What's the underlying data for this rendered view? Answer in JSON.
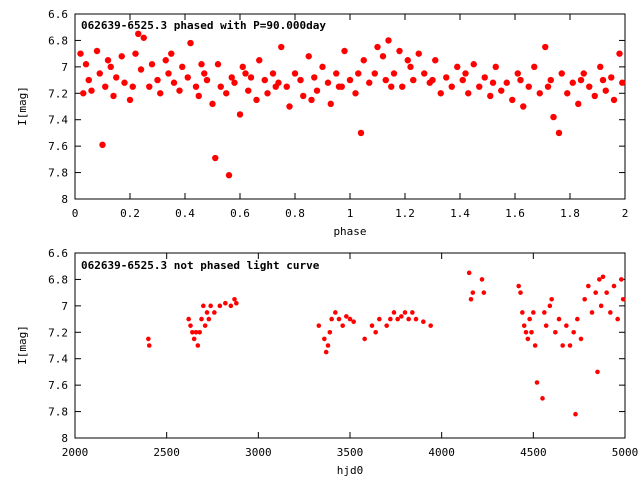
{
  "chart_data": [
    {
      "type": "scatter",
      "title": "062639-6525.3 phased with P=90.000day",
      "xlabel": "phase",
      "ylabel": "I[mag]",
      "xlim": [
        0,
        2
      ],
      "ylim": [
        6.6,
        8
      ],
      "y_inverted": true,
      "grid": false,
      "marker_color": "#ff0000",
      "xticks": [
        "0",
        "0.2",
        "0.4",
        "0.6",
        "0.8",
        "1",
        "1.2",
        "1.4",
        "1.6",
        "1.8",
        "2"
      ],
      "yticks": [
        "6.6",
        "6.8",
        "7",
        "7.2",
        "7.4",
        "7.6",
        "7.8",
        "8"
      ],
      "period_days": 90.0,
      "series": [
        {
          "points": [
            [
              0.02,
              6.9
            ],
            [
              0.04,
              6.98
            ],
            [
              0.05,
              7.1
            ],
            [
              0.06,
              7.18
            ],
            [
              0.08,
              6.88
            ],
            [
              0.09,
              7.05
            ],
            [
              0.1,
              7.59
            ],
            [
              0.11,
              7.15
            ],
            [
              0.12,
              6.95
            ],
            [
              0.14,
              7.22
            ],
            [
              0.15,
              7.08
            ],
            [
              0.17,
              6.92
            ],
            [
              0.18,
              7.12
            ],
            [
              0.2,
              7.25
            ],
            [
              0.22,
              6.9
            ],
            [
              0.23,
              6.75
            ],
            [
              0.24,
              7.02
            ],
            [
              0.25,
              6.78
            ],
            [
              0.27,
              7.15
            ],
            [
              0.28,
              6.98
            ],
            [
              0.3,
              7.1
            ],
            [
              0.31,
              7.2
            ],
            [
              0.33,
              6.95
            ],
            [
              0.34,
              7.05
            ],
            [
              0.36,
              7.12
            ],
            [
              0.38,
              7.18
            ],
            [
              0.39,
              7.0
            ],
            [
              0.41,
              7.08
            ],
            [
              0.42,
              6.82
            ],
            [
              0.44,
              7.15
            ],
            [
              0.45,
              7.22
            ],
            [
              0.47,
              7.05
            ],
            [
              0.48,
              7.1
            ],
            [
              0.5,
              7.28
            ],
            [
              0.51,
              7.69
            ],
            [
              0.52,
              6.98
            ],
            [
              0.53,
              7.15
            ],
            [
              0.55,
              7.2
            ],
            [
              0.56,
              7.82
            ],
            [
              0.57,
              7.08
            ],
            [
              0.58,
              7.12
            ],
            [
              0.6,
              7.36
            ],
            [
              0.61,
              7.0
            ],
            [
              0.63,
              7.18
            ],
            [
              0.64,
              7.08
            ],
            [
              0.66,
              7.25
            ],
            [
              0.67,
              6.95
            ],
            [
              0.69,
              7.1
            ],
            [
              0.7,
              7.2
            ],
            [
              0.72,
              7.05
            ],
            [
              0.74,
              7.12
            ],
            [
              0.75,
              6.85
            ],
            [
              0.77,
              7.15
            ],
            [
              0.78,
              7.3
            ],
            [
              0.8,
              7.05
            ],
            [
              0.82,
              7.1
            ],
            [
              0.83,
              7.22
            ],
            [
              0.85,
              6.92
            ],
            [
              0.87,
              7.08
            ],
            [
              0.88,
              7.18
            ],
            [
              0.9,
              7.0
            ],
            [
              0.92,
              7.12
            ],
            [
              0.93,
              7.28
            ],
            [
              0.95,
              7.05
            ],
            [
              0.96,
              7.15
            ],
            [
              0.98,
              6.88
            ],
            [
              1.0,
              7.1
            ],
            [
              1.02,
              7.2
            ],
            [
              1.04,
              7.5
            ],
            [
              1.05,
              6.95
            ],
            [
              1.07,
              7.12
            ],
            [
              1.09,
              7.05
            ],
            [
              1.1,
              6.85
            ],
            [
              1.12,
              6.92
            ],
            [
              1.13,
              7.1
            ],
            [
              1.14,
              6.8
            ],
            [
              1.16,
              7.05
            ],
            [
              1.18,
              6.88
            ],
            [
              1.19,
              7.15
            ],
            [
              1.21,
              6.95
            ],
            [
              1.23,
              7.1
            ],
            [
              1.25,
              6.9
            ],
            [
              1.27,
              7.05
            ],
            [
              1.29,
              7.12
            ],
            [
              1.31,
              6.95
            ],
            [
              1.33,
              7.2
            ],
            [
              1.35,
              7.08
            ],
            [
              1.37,
              7.15
            ],
            [
              1.39,
              7.0
            ],
            [
              1.41,
              7.1
            ],
            [
              1.43,
              7.2
            ],
            [
              1.45,
              6.98
            ],
            [
              1.47,
              7.15
            ],
            [
              1.49,
              7.08
            ],
            [
              1.51,
              7.22
            ],
            [
              1.53,
              7.0
            ],
            [
              1.55,
              7.18
            ],
            [
              1.57,
              7.12
            ],
            [
              1.59,
              7.25
            ],
            [
              1.61,
              7.05
            ],
            [
              1.63,
              7.3
            ],
            [
              1.65,
              7.15
            ],
            [
              1.67,
              7.0
            ],
            [
              1.69,
              7.2
            ],
            [
              1.71,
              6.85
            ],
            [
              1.73,
              7.1
            ],
            [
              1.74,
              7.38
            ],
            [
              1.76,
              7.5
            ],
            [
              1.77,
              7.05
            ],
            [
              1.79,
              7.2
            ],
            [
              1.81,
              7.12
            ],
            [
              1.83,
              7.28
            ],
            [
              1.85,
              7.05
            ],
            [
              1.87,
              7.15
            ],
            [
              1.89,
              7.22
            ],
            [
              1.91,
              7.0
            ],
            [
              1.93,
              7.18
            ],
            [
              1.95,
              7.08
            ],
            [
              1.96,
              7.25
            ],
            [
              1.98,
              6.9
            ],
            [
              1.99,
              7.12
            ],
            [
              0.03,
              7.2
            ],
            [
              0.13,
              7.0
            ],
            [
              0.21,
              7.15
            ],
            [
              0.35,
              6.9
            ],
            [
              0.46,
              6.98
            ],
            [
              0.62,
              7.05
            ],
            [
              0.73,
              7.15
            ],
            [
              0.86,
              7.25
            ],
            [
              0.97,
              7.15
            ],
            [
              1.03,
              7.05
            ],
            [
              1.15,
              7.15
            ],
            [
              1.22,
              7.0
            ],
            [
              1.3,
              7.1
            ],
            [
              1.42,
              7.05
            ],
            [
              1.52,
              7.12
            ],
            [
              1.62,
              7.1
            ],
            [
              1.72,
              7.15
            ],
            [
              1.84,
              7.1
            ],
            [
              1.92,
              7.1
            ]
          ]
        }
      ]
    },
    {
      "type": "scatter",
      "title": "062639-6525.3 not phased light curve",
      "xlabel": "hjd0",
      "ylabel": "I[mag]",
      "xlim": [
        2000,
        5000
      ],
      "ylim": [
        6.6,
        8
      ],
      "y_inverted": true,
      "grid": false,
      "marker_color": "#ff0000",
      "xticks": [
        "2000",
        "2500",
        "3000",
        "3500",
        "4000",
        "4500",
        "5000"
      ],
      "yticks": [
        "6.6",
        "6.8",
        "7",
        "7.2",
        "7.4",
        "7.6",
        "7.8",
        "8"
      ],
      "series": [
        {
          "points": [
            [
              2400,
              7.25
            ],
            [
              2405,
              7.3
            ],
            [
              2620,
              7.1
            ],
            [
              2630,
              7.15
            ],
            [
              2640,
              7.2
            ],
            [
              2650,
              7.25
            ],
            [
              2660,
              7.2
            ],
            [
              2670,
              7.3
            ],
            [
              2680,
              7.2
            ],
            [
              2690,
              7.1
            ],
            [
              2700,
              7.0
            ],
            [
              2710,
              7.15
            ],
            [
              2720,
              7.05
            ],
            [
              2730,
              7.1
            ],
            [
              2740,
              7.0
            ],
            [
              2760,
              7.05
            ],
            [
              2790,
              7.0
            ],
            [
              2820,
              6.98
            ],
            [
              2850,
              7.0
            ],
            [
              2870,
              6.95
            ],
            [
              2880,
              6.98
            ],
            [
              3330,
              7.15
            ],
            [
              3360,
              7.25
            ],
            [
              3370,
              7.35
            ],
            [
              3380,
              7.3
            ],
            [
              3390,
              7.2
            ],
            [
              3400,
              7.1
            ],
            [
              3420,
              7.05
            ],
            [
              3440,
              7.1
            ],
            [
              3460,
              7.15
            ],
            [
              3480,
              7.08
            ],
            [
              3500,
              7.1
            ],
            [
              3520,
              7.12
            ],
            [
              3580,
              7.25
            ],
            [
              3620,
              7.15
            ],
            [
              3640,
              7.2
            ],
            [
              3660,
              7.1
            ],
            [
              3700,
              7.15
            ],
            [
              3720,
              7.1
            ],
            [
              3740,
              7.05
            ],
            [
              3760,
              7.1
            ],
            [
              3780,
              7.08
            ],
            [
              3800,
              7.05
            ],
            [
              3820,
              7.1
            ],
            [
              3840,
              7.05
            ],
            [
              3860,
              7.1
            ],
            [
              3900,
              7.12
            ],
            [
              3940,
              7.15
            ],
            [
              4150,
              6.75
            ],
            [
              4160,
              6.95
            ],
            [
              4170,
              6.9
            ],
            [
              4220,
              6.8
            ],
            [
              4230,
              6.9
            ],
            [
              4420,
              6.85
            ],
            [
              4430,
              6.9
            ],
            [
              4440,
              7.05
            ],
            [
              4450,
              7.15
            ],
            [
              4460,
              7.2
            ],
            [
              4470,
              7.25
            ],
            [
              4480,
              7.1
            ],
            [
              4490,
              7.2
            ],
            [
              4500,
              7.05
            ],
            [
              4510,
              7.3
            ],
            [
              4520,
              7.58
            ],
            [
              4550,
              7.7
            ],
            [
              4560,
              7.05
            ],
            [
              4570,
              7.15
            ],
            [
              4590,
              7.0
            ],
            [
              4600,
              6.95
            ],
            [
              4620,
              7.2
            ],
            [
              4640,
              7.1
            ],
            [
              4660,
              7.3
            ],
            [
              4680,
              7.15
            ],
            [
              4700,
              7.3
            ],
            [
              4720,
              7.2
            ],
            [
              4730,
              7.82
            ],
            [
              4740,
              7.1
            ],
            [
              4760,
              7.25
            ],
            [
              4780,
              6.95
            ],
            [
              4800,
              6.85
            ],
            [
              4820,
              7.05
            ],
            [
              4840,
              6.9
            ],
            [
              4850,
              7.5
            ],
            [
              4860,
              6.8
            ],
            [
              4870,
              7.0
            ],
            [
              4880,
              6.78
            ],
            [
              4900,
              6.9
            ],
            [
              4920,
              7.05
            ],
            [
              4940,
              6.85
            ],
            [
              4960,
              7.1
            ],
            [
              4980,
              6.8
            ],
            [
              4990,
              6.95
            ]
          ]
        }
      ]
    }
  ]
}
